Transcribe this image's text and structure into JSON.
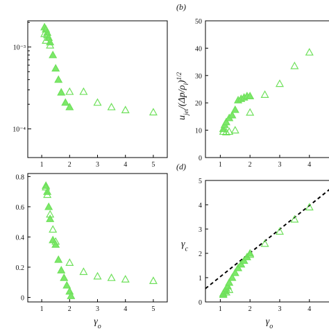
{
  "chart_data": [
    {
      "type": "scatter",
      "panel_label": "",
      "ylabel": "",
      "xlabel": "",
      "xlim": [
        0.5,
        5.5
      ],
      "ylim_log": [
        -4.35,
        -2.68
      ],
      "y_scale": "log",
      "x_ticks": [
        "1",
        "2",
        "3",
        "4",
        "5"
      ],
      "y_ticks": [
        {
          "value": 0.001,
          "label": "10⁻³"
        },
        {
          "value": 0.0001,
          "label": "10⁻⁴"
        }
      ],
      "series": [
        {
          "marker": "filled-triangle",
          "x": [
            1.1,
            1.15,
            1.2,
            1.25,
            1.3,
            1.4,
            1.5,
            1.6,
            1.7,
            1.85,
            2.0
          ],
          "y": [
            0.00175,
            0.00165,
            0.0015,
            0.0013,
            0.00115,
            0.0008,
            0.00055,
            0.0004,
            0.00028,
            0.00021,
            0.000185
          ]
        },
        {
          "marker": "open-triangle",
          "x": [
            1.1,
            1.15,
            1.2,
            1.3,
            2.0,
            2.5,
            3.0,
            3.5,
            4.0,
            5.0
          ],
          "y": [
            0.00145,
            0.0012,
            0.0014,
            0.00105,
            0.000285,
            0.000285,
            0.00021,
            0.000185,
            0.00017,
            0.00016
          ]
        }
      ]
    },
    {
      "type": "scatter",
      "panel_label": "(b)",
      "ylabel": "u_jet/(Δp/ρ_l)^1/2",
      "xlabel": "",
      "xlim": [
        0.5,
        4.8
      ],
      "ylim": [
        0,
        50
      ],
      "x_ticks": [
        "1",
        "2",
        "3",
        "4"
      ],
      "y_ticks": [
        "0",
        "10",
        "20",
        "30",
        "40",
        "50"
      ],
      "series": [
        {
          "marker": "filled-triangle",
          "x": [
            1.1,
            1.15,
            1.2,
            1.3,
            1.4,
            1.5,
            1.6,
            1.7,
            1.8,
            1.9,
            2.0
          ],
          "y": [
            10.5,
            12,
            13,
            14.5,
            15.5,
            17.5,
            21,
            21.5,
            22,
            22.5,
            22.5
          ]
        },
        {
          "marker": "open-triangle",
          "x": [
            1.1,
            1.2,
            1.3,
            1.5,
            2.0,
            2.5,
            3.0,
            3.5,
            4.0
          ],
          "y": [
            9.5,
            9.3,
            9.5,
            10,
            16.5,
            23,
            27,
            33.5,
            38.5
          ]
        }
      ]
    },
    {
      "type": "scatter",
      "panel_label": "",
      "ylabel": "",
      "xlabel": "γ_o",
      "xlim": [
        0.5,
        5.5
      ],
      "ylim": [
        -0.03,
        0.82
      ],
      "x_ticks": [
        "1",
        "2",
        "3",
        "4",
        "5"
      ],
      "y_ticks": [
        "0",
        "0.2",
        "0.4",
        "0.6",
        "0.8"
      ],
      "series": [
        {
          "marker": "filled-triangle",
          "x": [
            1.15,
            1.2,
            1.25,
            1.3,
            1.4,
            1.5,
            1.6,
            1.7,
            1.8,
            1.9,
            2.0,
            2.05
          ],
          "y": [
            0.74,
            0.7,
            0.6,
            0.52,
            0.38,
            0.35,
            0.25,
            0.18,
            0.13,
            0.08,
            0.04,
            0.01
          ]
        },
        {
          "marker": "open-triangle",
          "x": [
            1.15,
            1.2,
            1.3,
            1.4,
            1.5,
            2.0,
            2.5,
            3.0,
            3.5,
            4.0,
            5.0
          ],
          "y": [
            0.73,
            0.68,
            0.55,
            0.45,
            0.37,
            0.23,
            0.17,
            0.14,
            0.13,
            0.12,
            0.11
          ]
        }
      ]
    },
    {
      "type": "scatter",
      "panel_label": "(d)",
      "ylabel": "γ_c",
      "xlabel": "γ_o",
      "xlim": [
        0.5,
        4.8
      ],
      "ylim": [
        0,
        5
      ],
      "x_ticks": [
        "1",
        "2",
        "3",
        "4"
      ],
      "y_ticks": [
        "0",
        "1",
        "2",
        "3",
        "4",
        "5"
      ],
      "line": {
        "style": "dashed",
        "x": [
          0.5,
          4.8
        ],
        "y": [
          0.55,
          4.75
        ]
      },
      "series": [
        {
          "marker": "filled-triangle",
          "x": [
            1.1,
            1.15,
            1.2,
            1.25,
            1.3,
            1.4,
            1.5,
            1.6,
            1.7,
            1.8,
            1.9,
            2.0
          ],
          "y": [
            0.3,
            0.45,
            0.55,
            0.65,
            0.8,
            1.0,
            1.2,
            1.4,
            1.55,
            1.7,
            1.85,
            2.0
          ]
        },
        {
          "marker": "open-triangle",
          "x": [
            1.1,
            1.2,
            1.3,
            2.0,
            2.5,
            3.0,
            3.5,
            4.0
          ],
          "y": [
            0.35,
            0.4,
            0.5,
            1.95,
            2.4,
            2.9,
            3.4,
            3.9
          ]
        }
      ]
    }
  ],
  "colors": {
    "marker": "#6ee05a",
    "marker_fill": "#7de86a",
    "axis": "#000000",
    "dash_line": "#000000"
  }
}
